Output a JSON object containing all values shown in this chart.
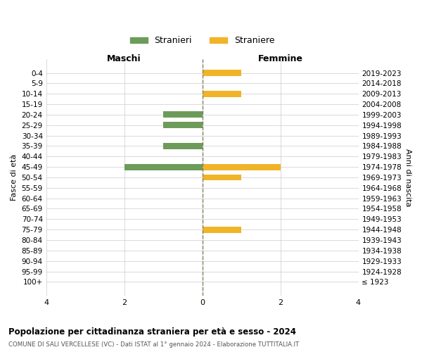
{
  "age_groups": [
    "100+",
    "95-99",
    "90-94",
    "85-89",
    "80-84",
    "75-79",
    "70-74",
    "65-69",
    "60-64",
    "55-59",
    "50-54",
    "45-49",
    "40-44",
    "35-39",
    "30-34",
    "25-29",
    "20-24",
    "15-19",
    "10-14",
    "5-9",
    "0-4"
  ],
  "birth_years": [
    "≤ 1923",
    "1924-1928",
    "1929-1933",
    "1934-1938",
    "1939-1943",
    "1944-1948",
    "1949-1953",
    "1954-1958",
    "1959-1963",
    "1964-1968",
    "1969-1973",
    "1974-1978",
    "1979-1983",
    "1984-1988",
    "1989-1993",
    "1994-1998",
    "1999-2003",
    "2004-2008",
    "2009-2013",
    "2014-2018",
    "2019-2023"
  ],
  "maschi": [
    0,
    0,
    0,
    0,
    0,
    0,
    0,
    0,
    0,
    0,
    0,
    2,
    0,
    1,
    0,
    1,
    1,
    0,
    0,
    0,
    0
  ],
  "femmine": [
    0,
    0,
    0,
    0,
    0,
    1,
    0,
    0,
    0,
    0,
    1,
    2,
    0,
    0,
    0,
    0,
    0,
    0,
    1,
    0,
    1
  ],
  "color_maschi": "#6d9b5a",
  "color_femmine": "#f0b429",
  "title_main": "Popolazione per cittadinanza straniera per età e sesso - 2024",
  "title_sub": "COMUNE DI SALI VERCELLESE (VC) - Dati ISTAT al 1° gennaio 2024 - Elaborazione TUTTITALIA.IT",
  "xlabel_left": "Maschi",
  "xlabel_right": "Femmine",
  "ylabel_left": "Fasce di età",
  "ylabel_right": "Anni di nascita",
  "legend_maschi": "Stranieri",
  "legend_femmine": "Straniere",
  "xlim": 4,
  "background_color": "#ffffff",
  "grid_color": "#cccccc",
  "center_line_color": "#808060"
}
